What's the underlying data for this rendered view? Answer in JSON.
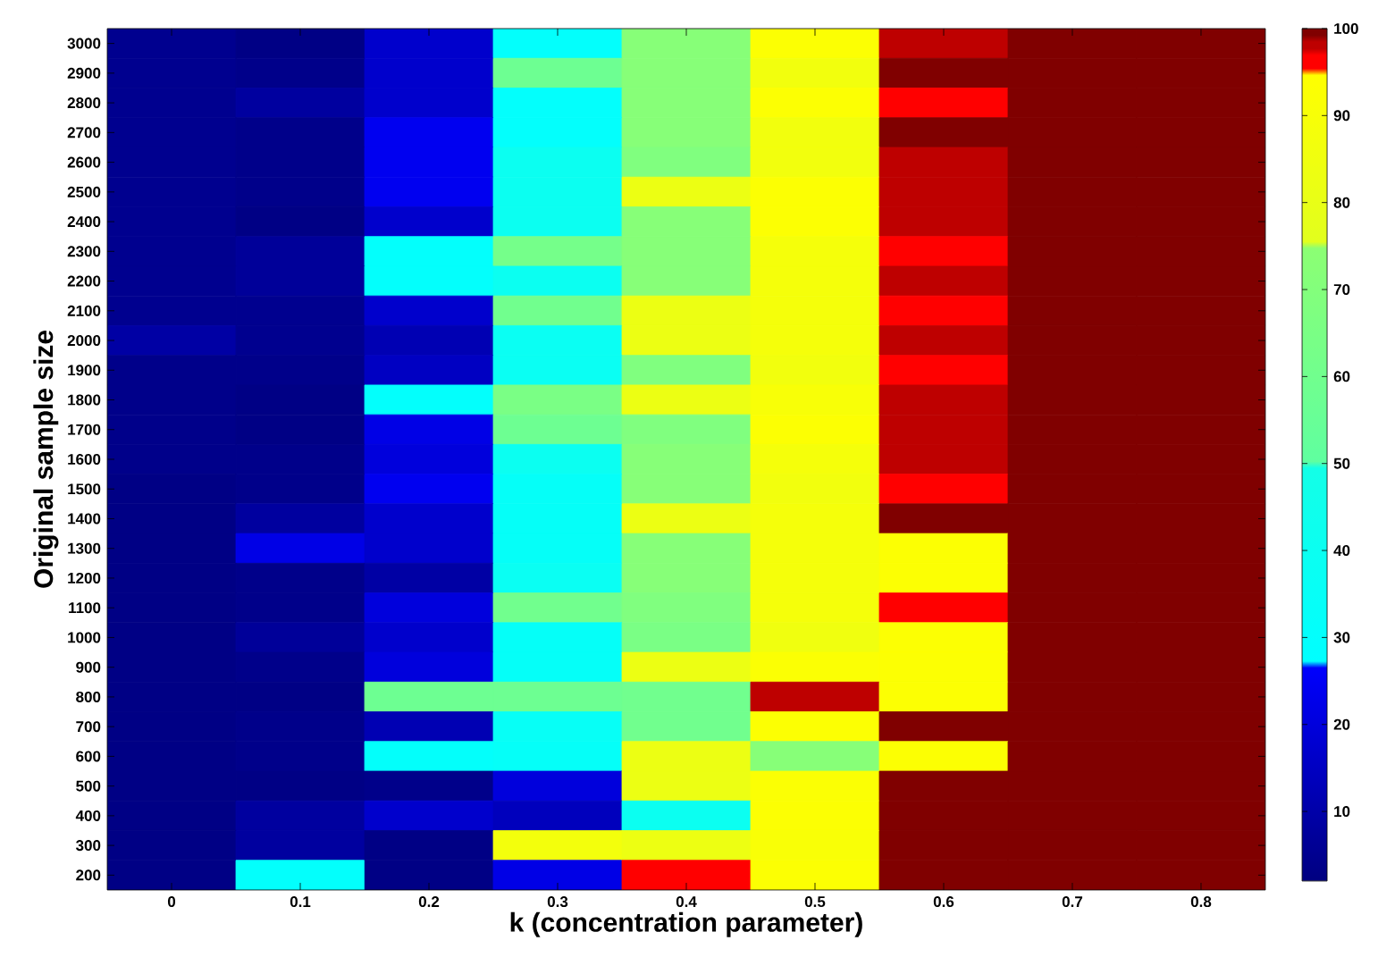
{
  "chart_data": {
    "type": "heatmap",
    "xlabel": "k (concentration parameter)",
    "ylabel": "Original sample size",
    "categories": [
      "0",
      "0.1",
      "0.2",
      "0.3",
      "0.4",
      "0.5",
      "0.6",
      "0.7",
      "0.8"
    ],
    "y_categories": [
      "3000",
      "2900",
      "2800",
      "2700",
      "2600",
      "2500",
      "2400",
      "2300",
      "2200",
      "2100",
      "2000",
      "1900",
      "1800",
      "1700",
      "1600",
      "1500",
      "1400",
      "1300",
      "1200",
      "1100",
      "1000",
      "900",
      "800",
      "700",
      "600",
      "500",
      "400",
      "300",
      "200"
    ],
    "cells": [
      [
        5,
        3,
        17,
        30,
        72,
        93,
        97.5,
        99.5,
        99.5
      ],
      [
        5,
        4,
        17,
        58,
        72,
        86,
        99.5,
        99.5,
        99.5
      ],
      [
        5,
        8,
        17,
        30,
        72,
        93,
        96,
        99.5,
        99.5
      ],
      [
        5,
        4,
        24,
        30,
        72,
        86,
        99.5,
        99.5,
        99.5
      ],
      [
        5,
        4,
        24,
        40,
        68,
        86,
        97.5,
        99.5,
        99.5
      ],
      [
        5,
        4,
        24,
        40,
        82,
        93,
        97.5,
        99.5,
        99.5
      ],
      [
        5,
        3,
        17,
        40,
        72,
        93,
        97.5,
        99.5,
        99.5
      ],
      [
        5,
        7,
        30,
        62,
        72,
        88,
        96,
        99.5,
        99.5
      ],
      [
        5,
        7,
        30,
        40,
        72,
        88,
        97.5,
        99.5,
        99.5
      ],
      [
        5,
        5,
        17,
        60,
        82,
        88,
        96,
        99.5,
        99.5
      ],
      [
        9,
        5,
        12,
        38,
        82,
        88,
        97.5,
        99.5,
        99.5
      ],
      [
        4,
        4,
        15,
        38,
        68,
        86,
        96,
        99.5,
        99.5
      ],
      [
        4,
        3,
        30,
        65,
        82,
        90,
        97.5,
        99.5,
        99.5
      ],
      [
        4,
        3,
        22,
        58,
        68,
        93,
        97.5,
        99.5,
        99.5
      ],
      [
        4,
        4,
        20,
        40,
        72,
        88,
        97.5,
        99.5,
        99.5
      ],
      [
        3,
        4,
        24,
        33,
        72,
        86,
        96,
        99.5,
        99.5
      ],
      [
        3,
        8,
        17,
        33,
        82,
        88,
        99.5,
        99.5,
        99.5
      ],
      [
        3,
        22,
        17,
        33,
        72,
        88,
        93,
        99.5,
        99.5
      ],
      [
        3,
        4,
        9,
        38,
        72,
        88,
        93,
        99.5,
        99.5
      ],
      [
        3,
        4,
        20,
        60,
        68,
        88,
        96,
        99.5,
        99.5
      ],
      [
        3,
        7,
        17,
        33,
        65,
        85,
        93,
        99.5,
        99.5
      ],
      [
        3,
        4,
        20,
        33,
        82,
        92,
        93,
        99.5,
        99.5
      ],
      [
        3,
        3,
        58,
        58,
        60,
        97.5,
        93,
        99.5,
        99.5
      ],
      [
        3,
        4,
        12,
        35,
        60,
        93,
        99.5,
        99.5,
        99.5
      ],
      [
        3,
        4,
        31,
        33,
        82,
        72,
        93,
        99.5,
        99.5
      ],
      [
        3,
        3,
        4,
        20,
        82,
        92,
        99.5,
        99.5,
        99.5
      ],
      [
        3,
        8,
        17,
        14,
        40,
        93,
        99.5,
        99.5,
        99.5
      ],
      [
        3,
        8,
        3,
        87,
        83,
        91,
        99.5,
        99.5,
        99.5
      ],
      [
        3,
        30,
        3,
        22,
        96,
        93,
        99.5,
        99.5,
        99.5
      ]
    ],
    "clim": [
      2,
      100
    ],
    "cticks": [
      10,
      20,
      30,
      40,
      50,
      60,
      70,
      80,
      90,
      100
    ]
  }
}
